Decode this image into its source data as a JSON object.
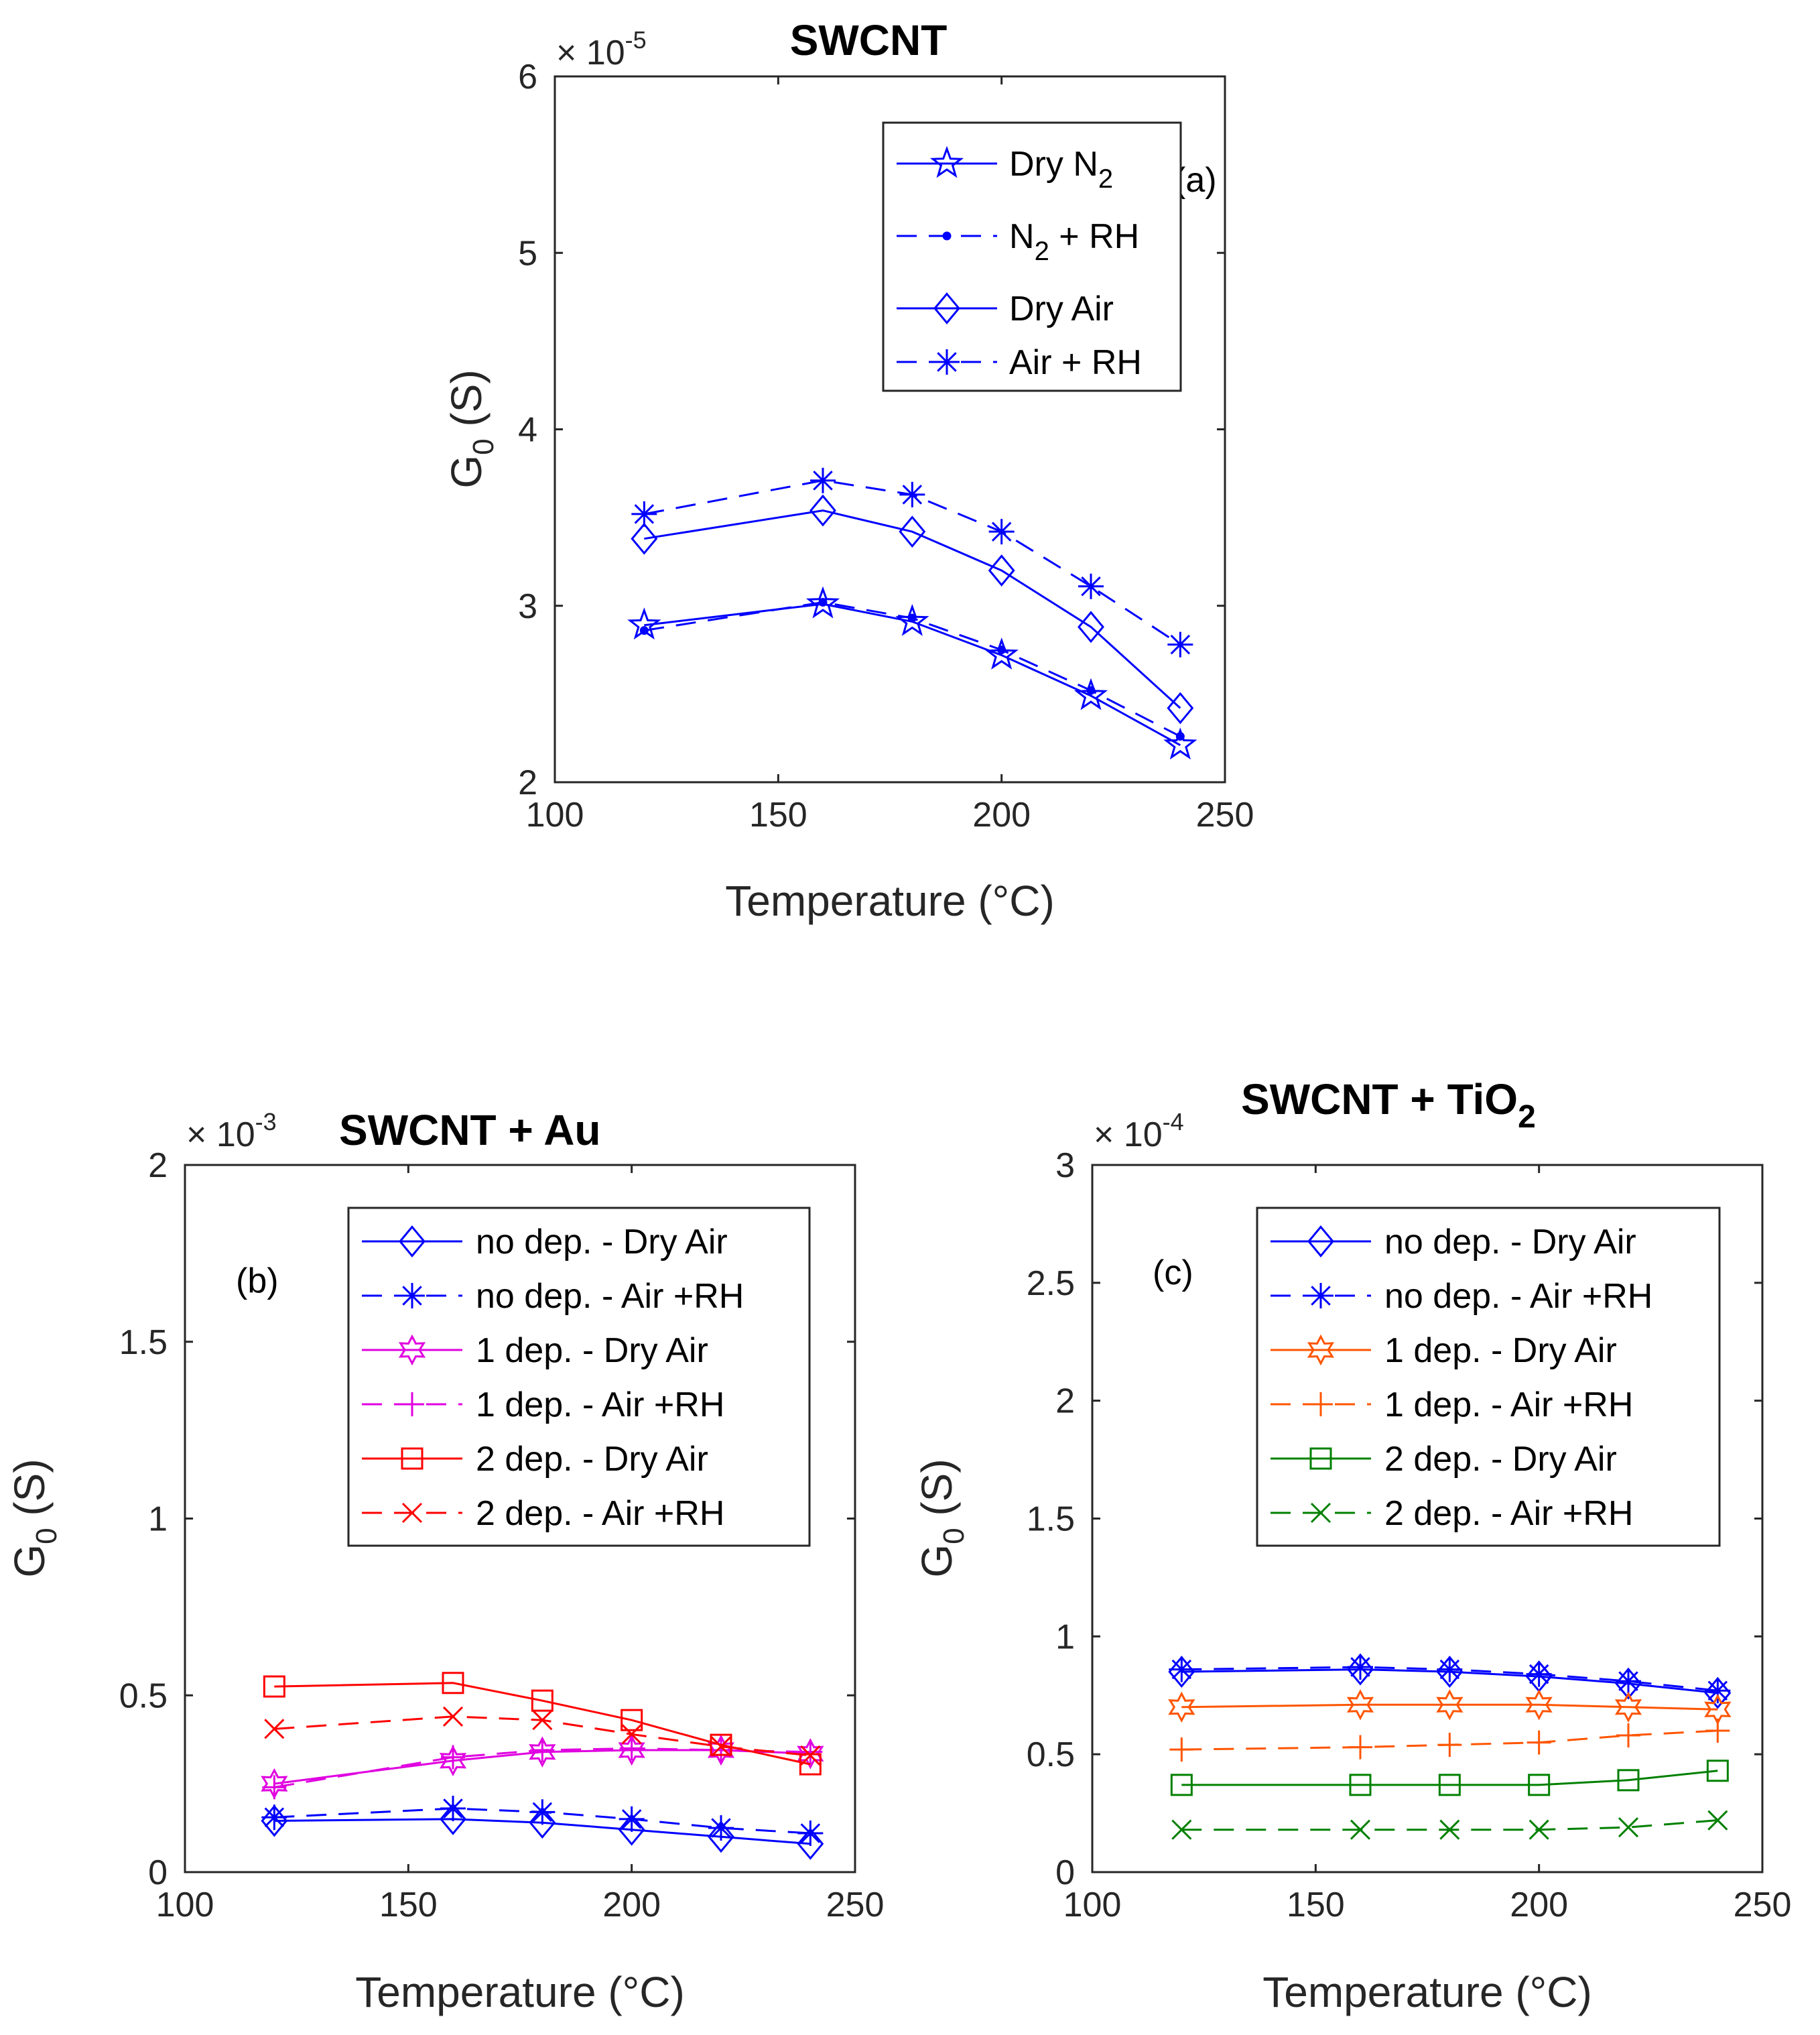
{
  "chart_data": [
    {
      "type": "line",
      "title": "SWCNT",
      "annotation": "(a)",
      "xlabel": "Temperature (°C)",
      "ylabel_main": "G",
      "ylabel_sub": "0",
      "ylabel_unit": " (S)",
      "exponent_base": "× 10",
      "exponent_power": "-5",
      "xlim": [
        100,
        250
      ],
      "ylim": [
        2,
        6
      ],
      "xticks": [
        100,
        150,
        200,
        250
      ],
      "yticks": [
        2,
        3,
        4,
        5,
        6
      ],
      "xtick_labels": [
        "100",
        "150",
        "200",
        "250"
      ],
      "ytick_labels": [
        "2",
        "3",
        "4",
        "5",
        "6"
      ],
      "legend_position": "top-right",
      "x": [
        120,
        160,
        180,
        200,
        220,
        240
      ],
      "series": [
        {
          "name": "Dry N",
          "name_sub": "2",
          "name_tail": "",
          "color": "#0000ff",
          "dash": "solid",
          "marker": "pentagram",
          "values": [
            2.89,
            3.01,
            2.91,
            2.72,
            2.49,
            2.21
          ]
        },
        {
          "name": "N",
          "name_sub": "2",
          "name_tail": " + RH",
          "color": "#0000ff",
          "dash": "dashed",
          "marker": "dot",
          "values": [
            2.86,
            3.02,
            2.93,
            2.75,
            2.52,
            2.26
          ]
        },
        {
          "name": "Dry Air",
          "name_sub": "",
          "name_tail": "",
          "color": "#0000ff",
          "dash": "solid",
          "marker": "diamond",
          "values": [
            3.38,
            3.54,
            3.42,
            3.2,
            2.88,
            2.42
          ]
        },
        {
          "name": "Air + RH",
          "name_sub": "",
          "name_tail": "",
          "color": "#0000ff",
          "dash": "dashed",
          "marker": "asterisk",
          "values": [
            3.52,
            3.71,
            3.63,
            3.42,
            3.11,
            2.78
          ]
        }
      ]
    },
    {
      "type": "line",
      "title": "SWCNT + Au",
      "annotation": "(b)",
      "xlabel": "Temperature (°C)",
      "ylabel_main": "G",
      "ylabel_sub": "0",
      "ylabel_unit": " (S)",
      "exponent_base": "× 10",
      "exponent_power": "-3",
      "xlim": [
        100,
        250
      ],
      "ylim": [
        0,
        2
      ],
      "xticks": [
        100,
        150,
        200,
        250
      ],
      "yticks": [
        0,
        0.5,
        1,
        1.5,
        2
      ],
      "xtick_labels": [
        "100",
        "150",
        "200",
        "250"
      ],
      "ytick_labels": [
        "0",
        "0.5",
        "1",
        "1.5",
        "2"
      ],
      "legend_position": "top-right",
      "x": [
        120,
        160,
        180,
        200,
        220,
        240
      ],
      "series": [
        {
          "name": "no dep. - Dry Air",
          "color": "#0000ff",
          "dash": "solid",
          "marker": "diamond",
          "values": [
            0.145,
            0.15,
            0.14,
            0.12,
            0.1,
            0.08
          ]
        },
        {
          "name": "no dep. - Air +RH",
          "color": "#0000ff",
          "dash": "dashed",
          "marker": "asterisk",
          "values": [
            0.155,
            0.18,
            0.17,
            0.15,
            0.125,
            0.11
          ]
        },
        {
          "name": "1 dep. - Dry Air",
          "color": "#e000e0",
          "dash": "solid",
          "marker": "hexagram",
          "values": [
            0.25,
            0.315,
            0.34,
            0.345,
            0.345,
            0.335
          ]
        },
        {
          "name": "1 dep. - Air +RH",
          "color": "#e000e0",
          "dash": "dashed",
          "marker": "plus",
          "values": [
            0.24,
            0.325,
            0.345,
            0.35,
            0.345,
            0.34
          ]
        },
        {
          "name": "2 dep. - Dry Air",
          "color": "#ff0000",
          "dash": "solid",
          "marker": "square",
          "values": [
            0.525,
            0.535,
            0.485,
            0.43,
            0.36,
            0.305
          ]
        },
        {
          "name": "2 dep. - Air +RH",
          "color": "#ff0000",
          "dash": "dashed",
          "marker": "x",
          "values": [
            0.405,
            0.44,
            0.43,
            0.39,
            0.355,
            0.33
          ]
        }
      ]
    },
    {
      "type": "line",
      "title": "SWCNT  + TiO",
      "title_sub": "2",
      "annotation": "(c)",
      "xlabel": "Temperature (°C)",
      "ylabel_main": "G",
      "ylabel_sub": "0",
      "ylabel_unit": " (S)",
      "exponent_base": "× 10",
      "exponent_power": "-4",
      "xlim": [
        100,
        250
      ],
      "ylim": [
        0,
        3
      ],
      "xticks": [
        100,
        150,
        200,
        250
      ],
      "yticks": [
        0,
        0.5,
        1,
        1.5,
        2,
        2.5,
        3
      ],
      "xtick_labels": [
        "100",
        "150",
        "200",
        "250"
      ],
      "ytick_labels": [
        "0",
        "0.5",
        "1",
        "1.5",
        "2",
        "2.5",
        "3"
      ],
      "legend_position": "top-right",
      "x": [
        120,
        160,
        180,
        200,
        220,
        240
      ],
      "series": [
        {
          "name": "no dep. - Dry Air",
          "color": "#0000ff",
          "dash": "solid",
          "marker": "diamond",
          "values": [
            0.85,
            0.86,
            0.85,
            0.83,
            0.8,
            0.76
          ]
        },
        {
          "name": "no dep. - Air +RH",
          "color": "#0000ff",
          "dash": "dashed",
          "marker": "asterisk",
          "values": [
            0.86,
            0.87,
            0.86,
            0.84,
            0.81,
            0.77
          ]
        },
        {
          "name": "1 dep. - Dry Air",
          "color": "#ff5500",
          "dash": "solid",
          "marker": "hexagram",
          "values": [
            0.7,
            0.71,
            0.71,
            0.71,
            0.7,
            0.69
          ]
        },
        {
          "name": "1 dep. - Air +RH",
          "color": "#ff5500",
          "dash": "dashed",
          "marker": "plus",
          "values": [
            0.52,
            0.53,
            0.54,
            0.55,
            0.58,
            0.6
          ]
        },
        {
          "name": "2 dep. - Dry Air",
          "color": "#008000",
          "dash": "solid",
          "marker": "square",
          "values": [
            0.37,
            0.37,
            0.37,
            0.37,
            0.39,
            0.43
          ]
        },
        {
          "name": "2 dep. - Air +RH",
          "color": "#008000",
          "dash": "dashed",
          "marker": "x",
          "values": [
            0.18,
            0.18,
            0.18,
            0.18,
            0.19,
            0.22
          ]
        }
      ]
    }
  ]
}
